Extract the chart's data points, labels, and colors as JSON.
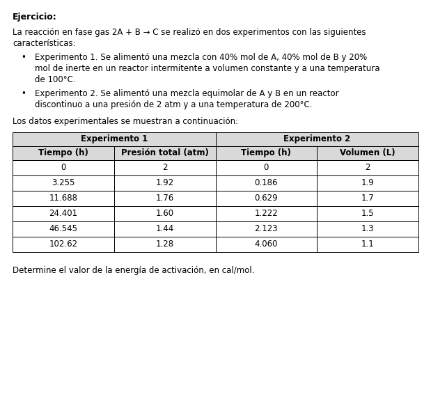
{
  "title": "Ejercicio:",
  "intro_line1": "La reacción en fase gas 2A + B → C se realizó en dos experimentos con las siguientes",
  "intro_line2": "características:",
  "bullet1_line1": "Experimento 1. Se alimentó una mezcla con 40% mol de A, 40% mol de B y 20%",
  "bullet1_line2": "mol de inerte en un reactor intermitente a volumen constante y a una temperatura",
  "bullet1_line3": "de 100°C.",
  "bullet2_line1": "Experimento 2. Se alimentó una mezcla equimolar de A y B en un reactor",
  "bullet2_line2": "discontinuo a una presión de 2 atm y a una temperatura de 200°C.",
  "table_intro": "Los datos experimentales se muestran a continuación:",
  "col_headers": [
    "Tiempo (h)",
    "Presión total (atm)",
    "Tiempo (h)",
    "Volumen (L)"
  ],
  "group_headers": [
    "Experimento 1",
    "Experimento 2"
  ],
  "exp1_data": [
    [
      "0",
      "2"
    ],
    [
      "3.255",
      "1.92"
    ],
    [
      "11.688",
      "1.76"
    ],
    [
      "24.401",
      "1.60"
    ],
    [
      "46.545",
      "1.44"
    ],
    [
      "102.62",
      "1.28"
    ]
  ],
  "exp2_data": [
    [
      "0",
      "2"
    ],
    [
      "0.186",
      "1.9"
    ],
    [
      "0.629",
      "1.7"
    ],
    [
      "1.222",
      "1.5"
    ],
    [
      "2.123",
      "1.3"
    ],
    [
      "4.060",
      "1.1"
    ]
  ],
  "footer_text": "Determine el valor de la energía de activación, en cal/mol.",
  "bg_color": "#ffffff",
  "header_bg": "#d9d9d9",
  "cell_bg": "#ffffff",
  "border_color": "#000000",
  "text_color": "#000000",
  "font_size": 8.5,
  "title_font_size": 9.0
}
